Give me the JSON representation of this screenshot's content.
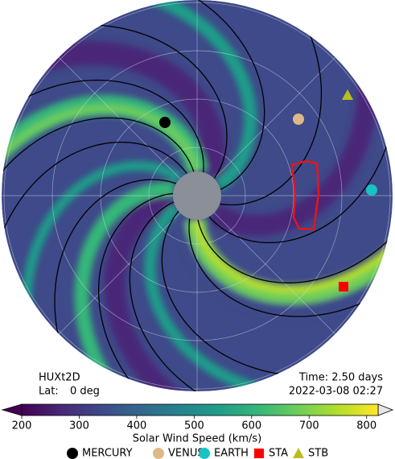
{
  "chart_data": {
    "type": "polar-field",
    "annotations": {
      "model": "HUXt2D",
      "lat_label": "Lat:",
      "lat": "0 deg",
      "time": "Time: 2.50 days",
      "date": "2022-03-08 02:27"
    },
    "colorbar": {
      "label": "Solar Wind Speed (km/s)",
      "lim": [
        200,
        820
      ],
      "ticks": [
        200,
        300,
        400,
        500,
        600,
        700,
        800
      ],
      "colors": [
        "#440154",
        "#482878",
        "#3e4989",
        "#31688e",
        "#26828e",
        "#1f9e89",
        "#35b779",
        "#6ece58",
        "#b5de2b",
        "#fde725"
      ]
    },
    "legend": [
      {
        "name": "MERCURY",
        "color": "#000000",
        "marker": "circle"
      },
      {
        "name": "VENUS",
        "color": "#deb887",
        "marker": "circle"
      },
      {
        "name": "EARTH",
        "color": "#17c3c3",
        "marker": "circle"
      },
      {
        "name": "STA",
        "color": "#ff0000",
        "marker": "square"
      },
      {
        "name": "STB",
        "color": "#bcbd22",
        "marker": "triangle"
      }
    ]
  }
}
